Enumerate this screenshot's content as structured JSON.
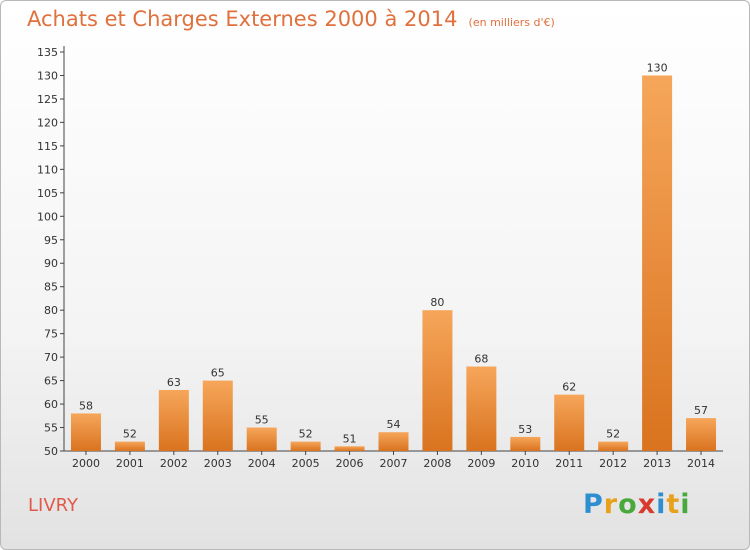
{
  "chart_data": {
    "type": "bar",
    "title": "Achats et Charges Externes 2000 à 2014",
    "unit_note": "(en milliers d'€)",
    "categories": [
      "2000",
      "2001",
      "2002",
      "2003",
      "2004",
      "2005",
      "2006",
      "2007",
      "2008",
      "2009",
      "2010",
      "2011",
      "2012",
      "2013",
      "2014"
    ],
    "values": [
      58,
      52,
      63,
      65,
      55,
      52,
      51,
      54,
      80,
      68,
      53,
      62,
      52,
      130,
      57
    ],
    "ylim": [
      50,
      135
    ],
    "yticks": [
      50,
      55,
      60,
      65,
      70,
      75,
      80,
      85,
      90,
      95,
      100,
      105,
      110,
      115,
      120,
      125,
      130,
      135
    ],
    "grid": false,
    "legend": "none",
    "colors": {
      "bar_light": "#f6a65a",
      "bar_dark": "#d9731f",
      "title": "#e0703c"
    }
  },
  "location": "LIVRY",
  "logo": {
    "text": "Proxiti",
    "letters": [
      {
        "ch": "P",
        "color": "#2e8fd0"
      },
      {
        "ch": "r",
        "color": "#e8a11a"
      },
      {
        "ch": "o",
        "color": "#4aa93c"
      },
      {
        "ch": "x",
        "color": "#d83a2e"
      },
      {
        "ch": "i",
        "color": "#2e8fd0"
      },
      {
        "ch": "t",
        "color": "#e8a11a"
      },
      {
        "ch": "i",
        "color": "#4aa93c"
      }
    ]
  }
}
